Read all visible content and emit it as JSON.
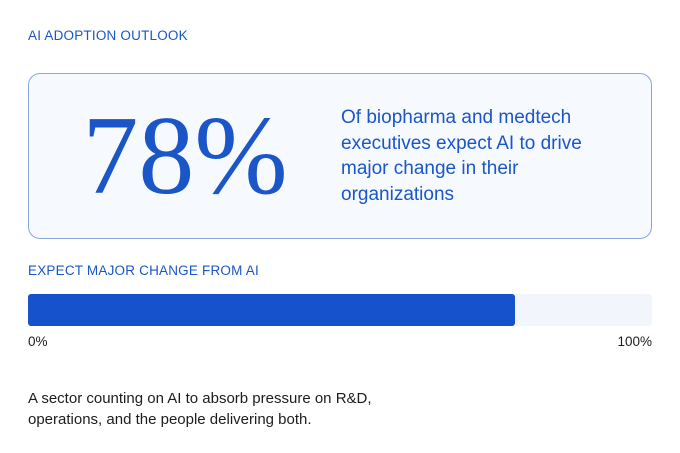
{
  "chart_data": {
    "type": "progress",
    "title": "AI ADOPTION OUTLOOK",
    "values": [
      78
    ],
    "value_labels": [
      "78%"
    ],
    "description": "Of biopharma and medtech executives expect AI to drive major change in their organizations",
    "axis_label": "EXPECT MAJOR CHANGE FROM AI",
    "xlim": [
      0,
      100
    ],
    "xticks": [
      {
        "value": 0,
        "label": "0%"
      },
      {
        "value": 100,
        "label": "100%"
      }
    ],
    "color": "#1652cc",
    "footnote": "A sector counting on AI to absorb pressure on R&D, operations, and the people delivering both."
  }
}
